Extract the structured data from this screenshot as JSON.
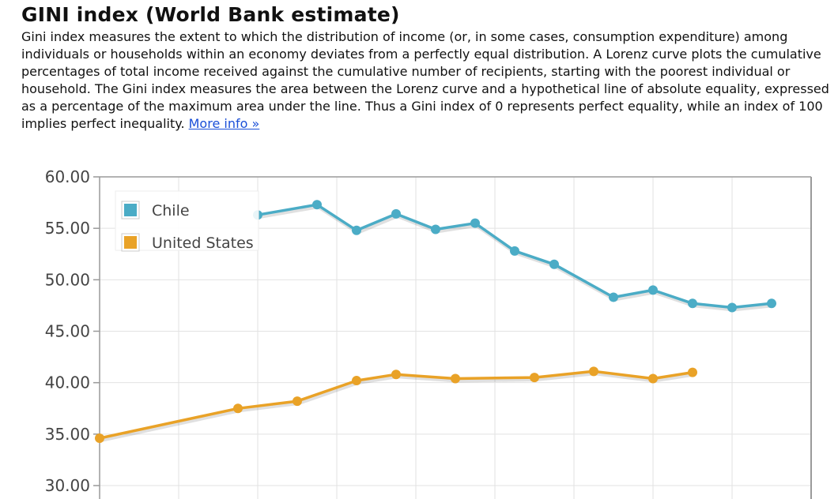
{
  "page": {
    "title": "GINI index (World Bank estimate)",
    "description": "Gini index measures the extent to which the distribution of income (or, in some cases, consumption expenditure) among individuals or households within an economy deviates from a perfectly equal distribution. A Lorenz curve plots the cumulative percentages of total income received against the cumulative number of recipients, starting with the poorest individual or household. The Gini index measures the area between the Lorenz curve and a hypothetical line of absolute equality, expressed as a percentage of the maximum area under the line. Thus a Gini index of 0 represents perfect equality, while an index of 100 implies perfect inequality.",
    "more_info_link": "More info »"
  },
  "chart_data": {
    "type": "line",
    "title": "",
    "xlabel": "",
    "ylabel": "",
    "ylim": [
      30,
      60
    ],
    "ytick_values": [
      30,
      35,
      40,
      45,
      50,
      55,
      60
    ],
    "ytick_labels": [
      "30.00",
      "35.00",
      "40.00",
      "45.00",
      "50.00",
      "55.00",
      "60.00"
    ],
    "x_index_range": [
      0,
      18
    ],
    "grid": true,
    "legend_position": "top-left",
    "series": [
      {
        "name": "Chile",
        "color": "#4bacc6",
        "points": [
          [
            4,
            56.3
          ],
          [
            5.5,
            57.3
          ],
          [
            6.5,
            54.8
          ],
          [
            7.5,
            56.4
          ],
          [
            8.5,
            54.9
          ],
          [
            9.5,
            55.5
          ],
          [
            10.5,
            52.8
          ],
          [
            11.5,
            51.5
          ],
          [
            13,
            48.3
          ],
          [
            14,
            49.0
          ],
          [
            15,
            47.7
          ],
          [
            16,
            47.3
          ],
          [
            17,
            47.7
          ]
        ]
      },
      {
        "name": "United States",
        "color": "#e9a227",
        "points": [
          [
            0,
            34.6
          ],
          [
            3.5,
            37.5
          ],
          [
            5,
            38.2
          ],
          [
            6.5,
            40.2
          ],
          [
            7.5,
            40.8
          ],
          [
            9,
            40.4
          ],
          [
            11,
            40.5
          ],
          [
            12.5,
            41.1
          ],
          [
            14,
            40.4
          ],
          [
            15,
            41.0
          ]
        ]
      }
    ]
  }
}
